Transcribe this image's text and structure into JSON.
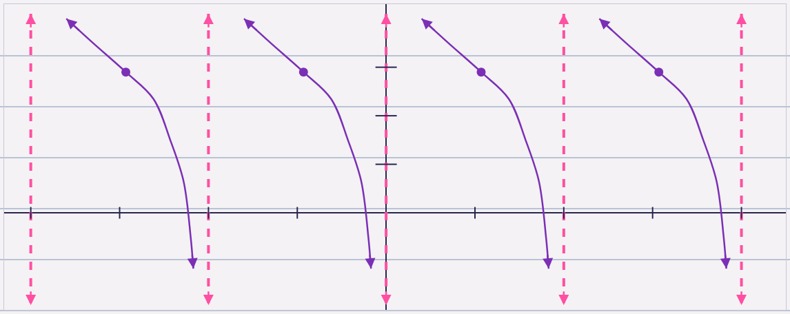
{
  "chart_data": {
    "type": "line",
    "xlim": [
      -4.3,
      4.5
    ],
    "ylim": [
      -2,
      4.3
    ],
    "xticks": [
      -4,
      -3,
      -2,
      -1,
      0,
      1,
      2,
      3,
      4
    ],
    "yticks": [
      1,
      2,
      3
    ],
    "tick_labels": false,
    "grid": false,
    "series": [
      {
        "type": "line",
        "color": "#ff4fa3",
        "line_style": "dashed",
        "x": [
          -4,
          -4,
          null,
          -2,
          -2,
          null,
          0,
          0,
          null,
          2,
          2,
          null,
          4,
          4
        ],
        "values": [
          4.1,
          -1.9,
          null,
          4.1,
          -1.9,
          null,
          4.1,
          -1.9,
          null,
          4.1,
          -1.9,
          null,
          4.1,
          -1.9
        ]
      },
      {
        "type": "line",
        "color": "#7b2fb5",
        "line_style": "solid",
        "x": [
          -3.6,
          -3.3,
          -2.93,
          -2.62,
          -2.43,
          -2.28,
          -2.2,
          -2.17,
          null,
          -1.6,
          -1.3,
          -0.93,
          -0.62,
          -0.43,
          -0.28,
          -0.2,
          -0.17,
          null,
          0.4,
          0.7,
          1.07,
          1.38,
          1.57,
          1.72,
          1.8,
          1.83,
          null,
          2.4,
          2.7,
          3.07,
          3.38,
          3.57,
          3.72,
          3.8,
          3.83
        ],
        "values": [
          4.0,
          3.5,
          2.9,
          2.35,
          1.5,
          0.65,
          -0.5,
          -1.15,
          null,
          4.0,
          3.5,
          2.9,
          2.35,
          1.5,
          0.65,
          -0.5,
          -1.15,
          null,
          4.0,
          3.5,
          2.9,
          2.35,
          1.5,
          0.65,
          -0.5,
          -1.15,
          null,
          4.0,
          3.5,
          2.9,
          2.35,
          1.5,
          0.65,
          -0.5,
          -1.15
        ]
      },
      {
        "type": "scatter",
        "color": "#7b2fb5",
        "marker": "circle",
        "x": [
          -2.93,
          -0.93,
          1.07,
          3.07
        ],
        "values": [
          2.9,
          2.9,
          2.9,
          2.9
        ]
      }
    ]
  }
}
